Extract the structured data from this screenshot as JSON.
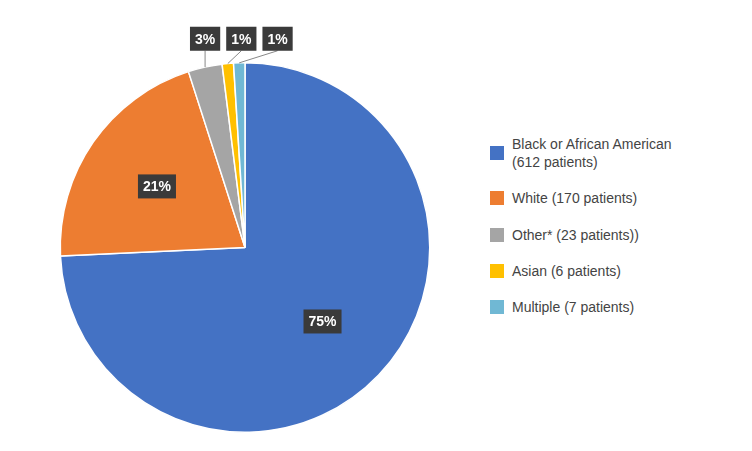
{
  "chart_data": {
    "type": "pie",
    "categories": [
      "Black or African American\n(612 patients)",
      "White (170 patients)",
      "Other* (23 patients))",
      "Asian (6 patients)",
      "Multiple (7 patients)"
    ],
    "values": [
      75,
      21,
      3,
      1,
      1
    ],
    "value_labels": [
      "75%",
      "21%",
      "3%",
      "1%",
      "1%"
    ],
    "colors": [
      "#4472C4",
      "#ED7D31",
      "#A5A5A5",
      "#FFC000",
      "#70B8D4"
    ],
    "data_labels": true,
    "legend": "right"
  }
}
